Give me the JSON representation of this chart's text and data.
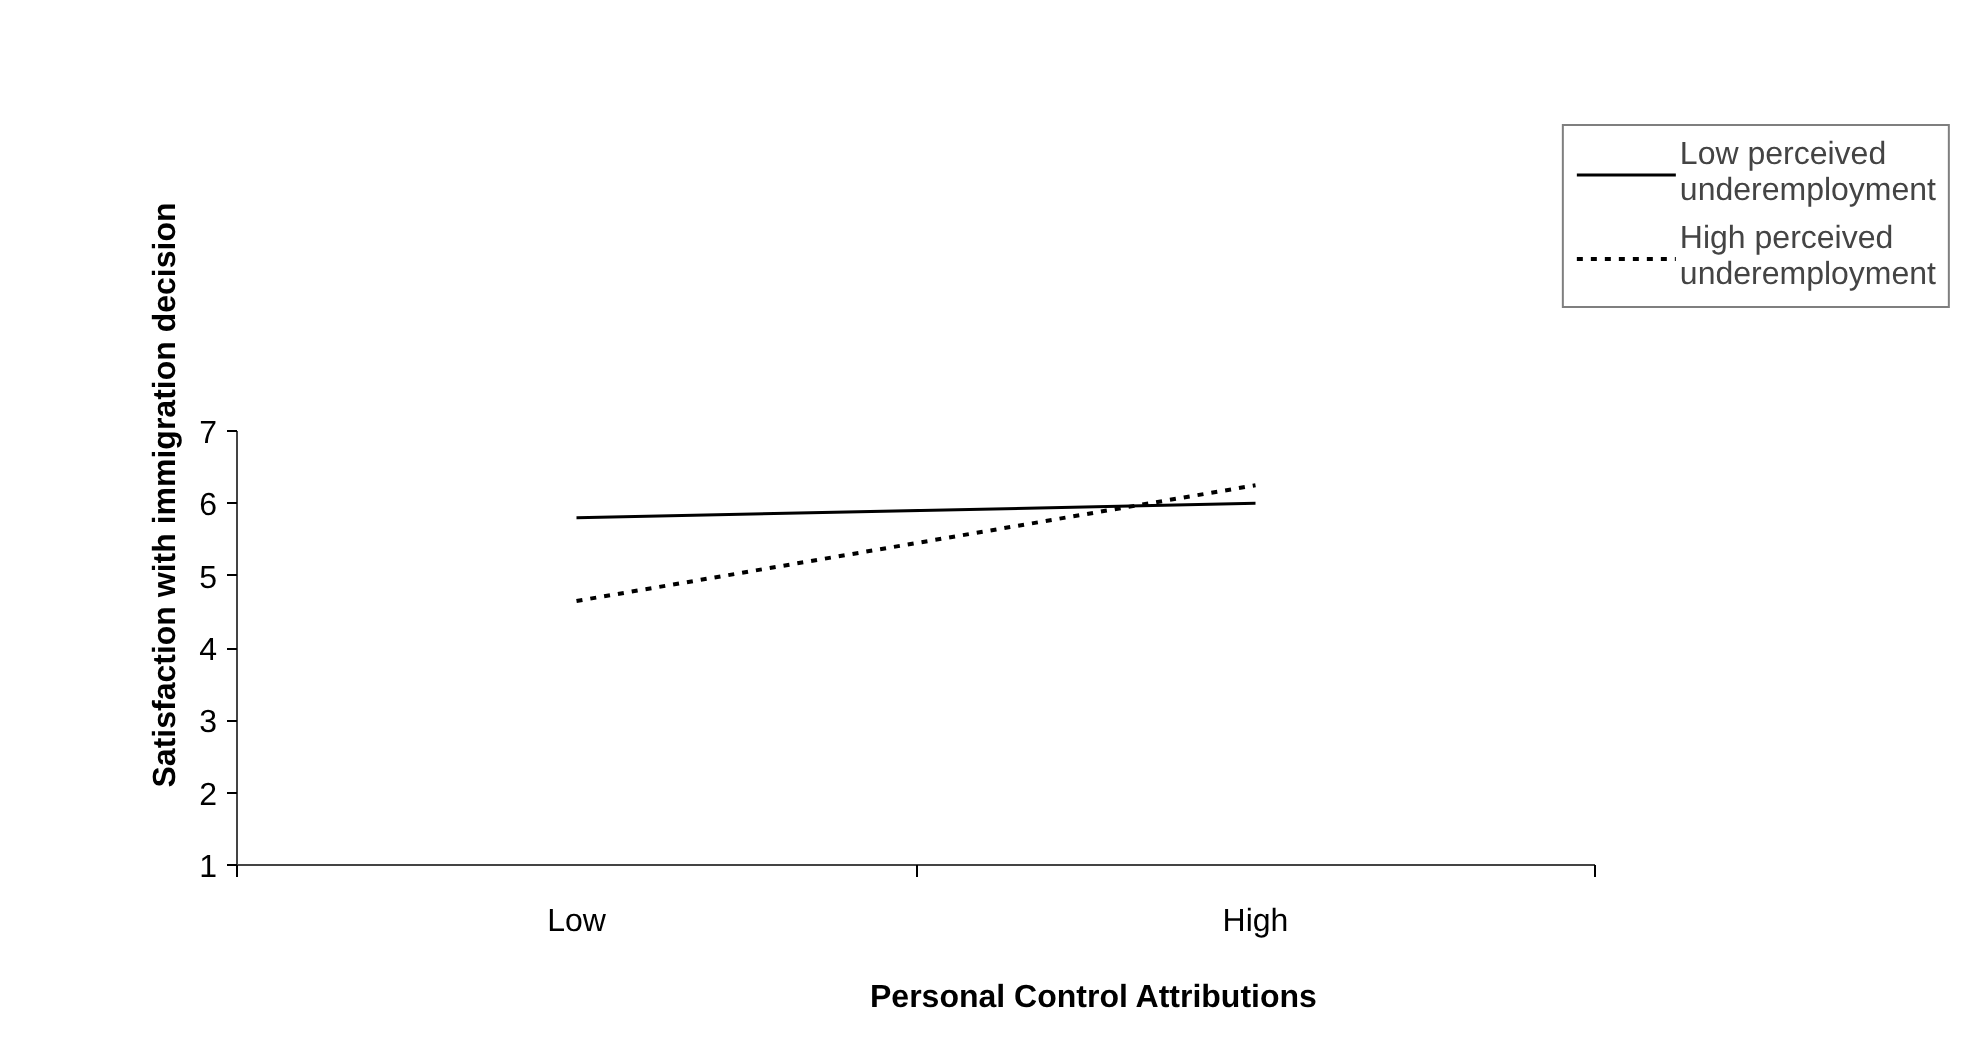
{
  "chart_data": {
    "type": "line",
    "xlabel": "Personal Control Attributions",
    "ylabel": "Satisfaction with immigration decision",
    "categories": [
      "Low",
      "High"
    ],
    "series": [
      {
        "name": "Low perceived underemployment",
        "color": "#000000",
        "values": [
          5.8,
          6.0
        ],
        "line_style": "solid"
      },
      {
        "name": "High perceived underemployment",
        "color": "#000000",
        "values": [
          4.65,
          6.25
        ],
        "line_style": "dotted"
      }
    ],
    "ylim": [
      1,
      7
    ],
    "yticks": [
      1,
      2,
      3,
      4,
      5,
      6,
      7
    ],
    "grid": false,
    "legend": "top right",
    "marker": "none"
  }
}
